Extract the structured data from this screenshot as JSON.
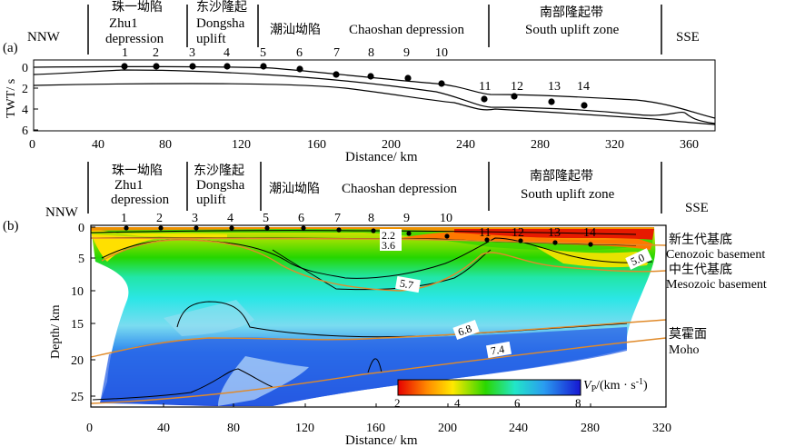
{
  "panel_a": {
    "label": "(a)",
    "dir_left": "NNW",
    "dir_right": "SSE",
    "zones": [
      {
        "zh": "珠一坳陷",
        "en1": "Zhu1",
        "en2": "depression"
      },
      {
        "zh": "东沙隆起",
        "en1": "Dongsha",
        "en2": "uplift"
      },
      {
        "zh": "潮汕坳陷",
        "en1": "Chaoshan depression"
      },
      {
        "zh": "南部隆起带",
        "en1": "South uplift zone"
      }
    ],
    "stations": [
      "1",
      "2",
      "3",
      "4",
      "5",
      "6",
      "7",
      "8",
      "9",
      "10",
      "11",
      "12",
      "13",
      "14"
    ],
    "ylabel": "TWT/ s",
    "xlabel": "Distance/ km",
    "xticks": [
      "0",
      "40",
      "80",
      "120",
      "160",
      "200",
      "240",
      "280",
      "320",
      "360"
    ],
    "yticks": [
      "0",
      "2",
      "4",
      "6"
    ]
  },
  "panel_b": {
    "label": "(b)",
    "dir_left": "NNW",
    "dir_right": "SSE",
    "zones": [
      {
        "zh": "珠一坳陷",
        "en1": "Zhu1",
        "en2": "depression"
      },
      {
        "zh": "东沙隆起",
        "en1": "Dongsha",
        "en2": "uplift"
      },
      {
        "zh": "潮汕坳陷",
        "en1": "Chaoshan depression"
      },
      {
        "zh": "南部隆起带",
        "en1": "South uplift zone"
      }
    ],
    "stations": [
      "1",
      "2",
      "3",
      "4",
      "5",
      "6",
      "7",
      "8",
      "9",
      "10",
      "11",
      "12",
      "13",
      "14"
    ],
    "ylabel": "Depth/ km",
    "xlabel": "Distance/ km",
    "xticks": [
      "0",
      "40",
      "80",
      "120",
      "160",
      "200",
      "240",
      "280",
      "320"
    ],
    "yticks": [
      "0",
      "5",
      "10",
      "15",
      "20",
      "25"
    ],
    "contour_labels": [
      "2.2",
      "3.6",
      "5.0",
      "5.7",
      "6.8",
      "7.4"
    ],
    "interfaces": [
      {
        "zh": "新生代基底",
        "en": "Cenozoic basement"
      },
      {
        "zh": "中生代基底",
        "en": "Mesozoic basement"
      },
      {
        "zh": "莫霍面",
        "en": "Moho"
      }
    ],
    "colorbar": {
      "label_main": "V",
      "label_sub": "P",
      "label_unit": "/(km · s",
      "label_exp": "-1",
      "label_close": ")",
      "ticks": [
        "2",
        "4",
        "6",
        "8"
      ]
    }
  }
}
